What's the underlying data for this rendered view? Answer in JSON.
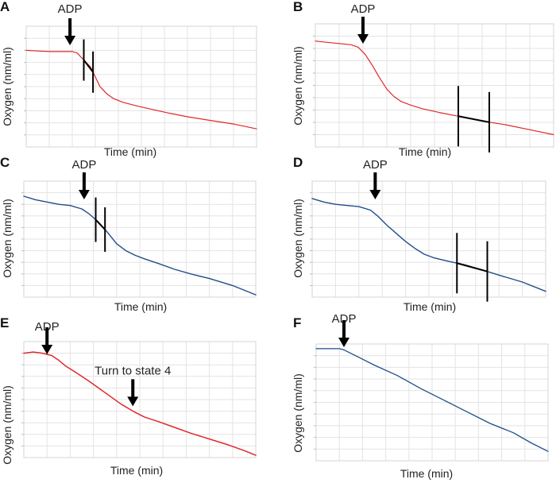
{
  "figure": {
    "description": "Six oxygen consumption traces (A-F) showing ADP-stimulated respiration",
    "colors": {
      "red": "#e0282c",
      "blue": "#1f4e8c",
      "axis": "#d4d4d4",
      "grid": "#e3e3e3",
      "marker": "#000000"
    }
  },
  "chart_data": [
    {
      "panel": "A",
      "type": "line",
      "color": "red",
      "xlabel": "Time (min)",
      "ylabel": "Oxygen (nm/ml)",
      "xlim": [
        0,
        100
      ],
      "ylim": [
        0,
        100
      ],
      "x": [
        0,
        5,
        10,
        15,
        20,
        22,
        24,
        26,
        28,
        30,
        32,
        35,
        38,
        42,
        48,
        55,
        62,
        70,
        80,
        90,
        100
      ],
      "y": [
        80,
        79.5,
        79,
        79,
        79,
        78,
        74,
        70,
        66,
        58,
        50,
        44,
        40,
        37,
        34,
        31,
        28,
        25,
        22,
        19,
        15
      ],
      "annotations": [
        {
          "label": "ADP",
          "x": 19
        }
      ],
      "rate_markers": [
        {
          "x": 25
        },
        {
          "x": 29
        }
      ]
    },
    {
      "panel": "B",
      "type": "line",
      "color": "red",
      "xlabel": "Time (min)",
      "ylabel": "Oxygen (nm/ml)",
      "xlim": [
        0,
        100
      ],
      "ylim": [
        0,
        100
      ],
      "x": [
        0,
        5,
        10,
        15,
        18,
        21,
        24,
        27,
        30,
        33,
        36,
        40,
        45,
        52,
        60,
        70,
        80,
        90,
        100
      ],
      "y": [
        86,
        85,
        84,
        83,
        81,
        75,
        66,
        56,
        47,
        41,
        37,
        34,
        31,
        28,
        25,
        21,
        18,
        14,
        10
      ],
      "annotations": [
        {
          "label": "ADP",
          "x": 20
        }
      ],
      "rate_markers": [
        {
          "x": 60
        },
        {
          "x": 73
        }
      ]
    },
    {
      "panel": "C",
      "type": "line",
      "color": "blue",
      "xlabel": "Time (min)",
      "ylabel": "Oxygen (nm/ml)",
      "xlim": [
        0,
        100
      ],
      "ylim": [
        0,
        100
      ],
      "x": [
        0,
        5,
        10,
        15,
        20,
        25,
        28,
        32,
        36,
        40,
        44,
        48,
        52,
        58,
        65,
        72,
        80,
        90,
        100
      ],
      "y": [
        87,
        84,
        82,
        80,
        79,
        76,
        72,
        65,
        56,
        46,
        40,
        36,
        33,
        29,
        24,
        20,
        16,
        10,
        2
      ],
      "annotations": [
        {
          "label": "ADP",
          "x": 26
        }
      ],
      "rate_markers": [
        {
          "x": 31
        },
        {
          "x": 35
        }
      ]
    },
    {
      "panel": "D",
      "type": "line",
      "color": "blue",
      "xlabel": "Time (min)",
      "ylabel": "Oxygen (nm/ml)",
      "xlim": [
        0,
        100
      ],
      "ylim": [
        0,
        100
      ],
      "x": [
        0,
        5,
        10,
        15,
        20,
        25,
        28,
        32,
        36,
        40,
        44,
        48,
        52,
        58,
        65,
        72,
        80,
        90,
        100
      ],
      "y": [
        85,
        82,
        80,
        79,
        78,
        75,
        70,
        62,
        55,
        48,
        42,
        37,
        34,
        31,
        28,
        24,
        19,
        13,
        5
      ],
      "annotations": [
        {
          "label": "ADP",
          "x": 27
        }
      ],
      "rate_markers": [
        {
          "x": 62
        },
        {
          "x": 75
        }
      ]
    },
    {
      "panel": "E",
      "type": "line",
      "color": "red",
      "xlabel": "Time (min)",
      "ylabel": "Oxygen (nm/ml)",
      "xlim": [
        0,
        100
      ],
      "ylim": [
        0,
        100
      ],
      "x": [
        0,
        4,
        8,
        12,
        15,
        18,
        22,
        28,
        35,
        42,
        48,
        52,
        58,
        65,
        72,
        80,
        88,
        95,
        100
      ],
      "y": [
        90,
        91,
        90,
        88,
        84,
        79,
        74,
        66,
        56,
        46,
        39,
        35,
        31,
        26,
        21,
        16,
        11,
        6,
        2
      ],
      "annotations": [
        {
          "label": "ADP",
          "x": 10
        },
        {
          "label": "Turn to state 4",
          "x": 47
        }
      ]
    },
    {
      "panel": "F",
      "type": "line",
      "color": "blue",
      "xlabel": "Time (min)",
      "ylabel": "Oxygen (nm/ml)",
      "xlim": [
        0,
        100
      ],
      "ylim": [
        0,
        100
      ],
      "x": [
        0,
        5,
        10,
        12,
        18,
        25,
        35,
        45,
        55,
        65,
        75,
        85,
        93,
        100
      ],
      "y": [
        96,
        96,
        96,
        95,
        89,
        82,
        73,
        62,
        52,
        42,
        32,
        24,
        15,
        8
      ],
      "annotations": [
        {
          "label": "ADP",
          "x": 12
        }
      ]
    }
  ]
}
